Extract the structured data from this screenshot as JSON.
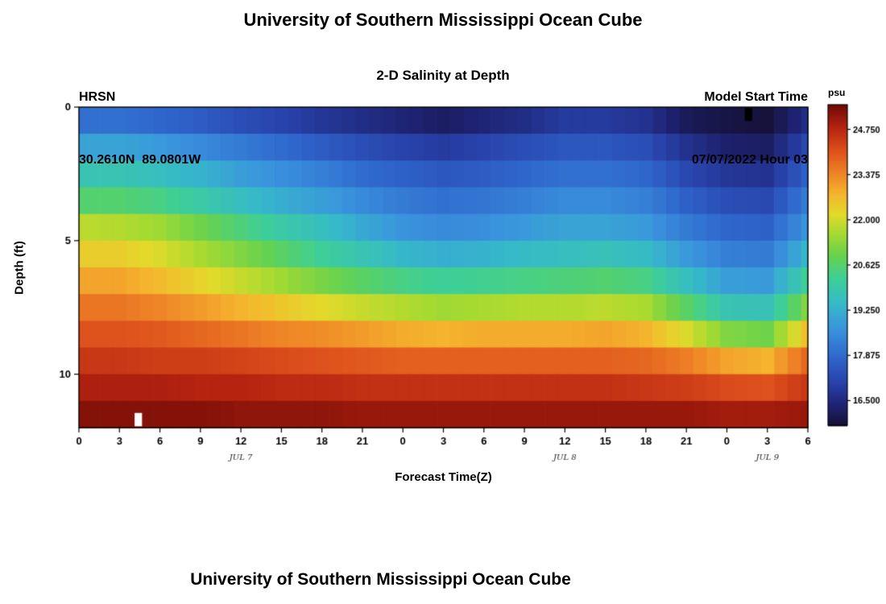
{
  "page": {
    "title_top": "University of Southern Mississippi Ocean Cube",
    "title_bottom": "University of Southern Mississippi Ocean Cube"
  },
  "header": {
    "station": "HRSN",
    "coordinates": "30.2610N  89.0801W",
    "plot_title": "2-D Salinity at Depth",
    "model_start_label": "Model Start Time",
    "model_start_value": "07/07/2022 Hour 03"
  },
  "chart_data": {
    "type": "heatmap",
    "title": "2-D Salinity at Depth",
    "xlabel": "Forecast Time(Z)",
    "ylabel": "Depth (ft)",
    "colorbar_label": "psu",
    "x_hours": [
      0,
      3,
      6,
      9,
      12,
      15,
      18,
      21,
      24,
      27,
      30,
      33,
      36,
      39,
      42,
      45,
      48,
      51,
      54
    ],
    "x_tick_labels": [
      "0",
      "3",
      "6",
      "9",
      "12",
      "15",
      "18",
      "21",
      "0",
      "3",
      "6",
      "9",
      "12",
      "15",
      "18",
      "21",
      "0",
      "3",
      "6"
    ],
    "date_labels": [
      {
        "hour": 12,
        "label": "JUL 7"
      },
      {
        "hour": 36,
        "label": "JUL 8"
      },
      {
        "hour": 51,
        "label": "JUL 9"
      }
    ],
    "depths_ft": [
      0.5,
      1.5,
      2.5,
      3.5,
      4.5,
      5.5,
      6.5,
      7.5,
      8.5,
      9.5,
      10.5,
      11.5
    ],
    "depth_range": [
      0,
      12
    ],
    "y_ticks": [
      0,
      5,
      10
    ],
    "value_range": [
      15.75,
      25.5
    ],
    "values": [
      [
        18.0,
        18.0,
        17.8,
        17.6,
        17.3,
        17.1,
        16.8,
        16.6,
        16.4,
        16.2,
        16.4,
        16.6,
        16.9,
        16.9,
        16.7,
        16.1,
        15.9,
        15.8,
        16.6
      ],
      [
        19.0,
        19.0,
        18.8,
        18.5,
        18.2,
        17.9,
        17.6,
        17.3,
        17.1,
        16.9,
        17.1,
        17.3,
        17.5,
        17.5,
        17.3,
        16.7,
        16.3,
        16.2,
        17.2
      ],
      [
        19.8,
        19.8,
        19.6,
        19.3,
        18.9,
        18.6,
        18.3,
        17.9,
        17.7,
        17.5,
        17.6,
        17.8,
        18.0,
        18.0,
        17.8,
        17.2,
        16.8,
        16.7,
        17.7
      ],
      [
        20.6,
        20.6,
        20.4,
        20.0,
        19.6,
        19.2,
        18.9,
        18.5,
        18.2,
        18.0,
        18.1,
        18.3,
        18.5,
        18.5,
        18.3,
        17.7,
        17.3,
        17.2,
        18.2
      ],
      [
        21.8,
        21.7,
        21.5,
        21.0,
        20.5,
        20.0,
        19.6,
        19.1,
        18.7,
        18.5,
        18.6,
        18.8,
        19.0,
        19.0,
        18.8,
        18.2,
        17.8,
        17.7,
        18.7
      ],
      [
        22.4,
        22.4,
        22.1,
        21.6,
        21.2,
        20.7,
        20.2,
        19.8,
        19.4,
        19.2,
        19.3,
        19.5,
        19.6,
        19.7,
        19.5,
        18.8,
        18.3,
        18.2,
        19.4
      ],
      [
        23.0,
        23.0,
        22.7,
        22.3,
        21.9,
        21.5,
        21.1,
        20.7,
        20.4,
        20.2,
        20.3,
        20.4,
        20.5,
        20.6,
        20.4,
        19.6,
        18.9,
        18.8,
        20.2
      ],
      [
        23.6,
        23.6,
        23.4,
        23.1,
        22.8,
        22.5,
        22.2,
        21.9,
        21.7,
        21.5,
        21.6,
        21.7,
        21.7,
        21.8,
        21.6,
        20.7,
        19.8,
        19.7,
        21.2
      ],
      [
        24.1,
        24.1,
        24.0,
        23.8,
        23.6,
        23.4,
        23.3,
        23.1,
        22.9,
        22.8,
        22.9,
        22.9,
        22.9,
        23.0,
        22.8,
        22.1,
        21.2,
        21.0,
        22.6
      ],
      [
        24.5,
        24.5,
        24.4,
        24.4,
        24.3,
        24.2,
        24.1,
        24.0,
        23.9,
        23.9,
        23.9,
        23.9,
        23.9,
        23.9,
        23.8,
        23.5,
        23.0,
        22.8,
        23.8
      ],
      [
        24.9,
        24.9,
        24.9,
        24.8,
        24.8,
        24.7,
        24.7,
        24.6,
        24.6,
        24.6,
        24.6,
        24.6,
        24.6,
        24.6,
        24.5,
        24.4,
        24.2,
        24.1,
        24.5
      ],
      [
        25.3,
        25.3,
        25.3,
        25.3,
        25.2,
        25.2,
        25.2,
        25.1,
        25.1,
        25.1,
        25.1,
        25.1,
        25.1,
        25.1,
        25.1,
        25.1,
        25.0,
        25.0,
        25.1
      ]
    ],
    "colorbar_ticks": [
      {
        "value": 24.75,
        "label": "24.750"
      },
      {
        "value": 23.375,
        "label": "23.375"
      },
      {
        "value": 22.0,
        "label": "22.000"
      },
      {
        "value": 20.625,
        "label": "20.625"
      },
      {
        "value": 19.25,
        "label": "19.250"
      },
      {
        "value": 17.875,
        "label": "17.875"
      },
      {
        "value": 16.5,
        "label": "16.500"
      }
    ],
    "colormap": [
      [
        0.0,
        "#151036"
      ],
      [
        0.06,
        "#1e2270"
      ],
      [
        0.13,
        "#2740a8"
      ],
      [
        0.21,
        "#2f66cc"
      ],
      [
        0.3,
        "#3a93dd"
      ],
      [
        0.38,
        "#36bac8"
      ],
      [
        0.46,
        "#3ecf96"
      ],
      [
        0.53,
        "#66d24e"
      ],
      [
        0.6,
        "#a8da30"
      ],
      [
        0.66,
        "#e2da2b"
      ],
      [
        0.72,
        "#f4b62d"
      ],
      [
        0.79,
        "#ee8126"
      ],
      [
        0.86,
        "#dd4f1c"
      ],
      [
        0.93,
        "#b52310"
      ],
      [
        1.0,
        "#700b06"
      ]
    ],
    "anomalies": [
      {
        "hour": 4.4,
        "depth_row": 11,
        "color": "#ffffff",
        "align": "bottom"
      },
      {
        "hour": 49.6,
        "depth_row": 0,
        "color": "#000000",
        "align": "top"
      }
    ]
  }
}
